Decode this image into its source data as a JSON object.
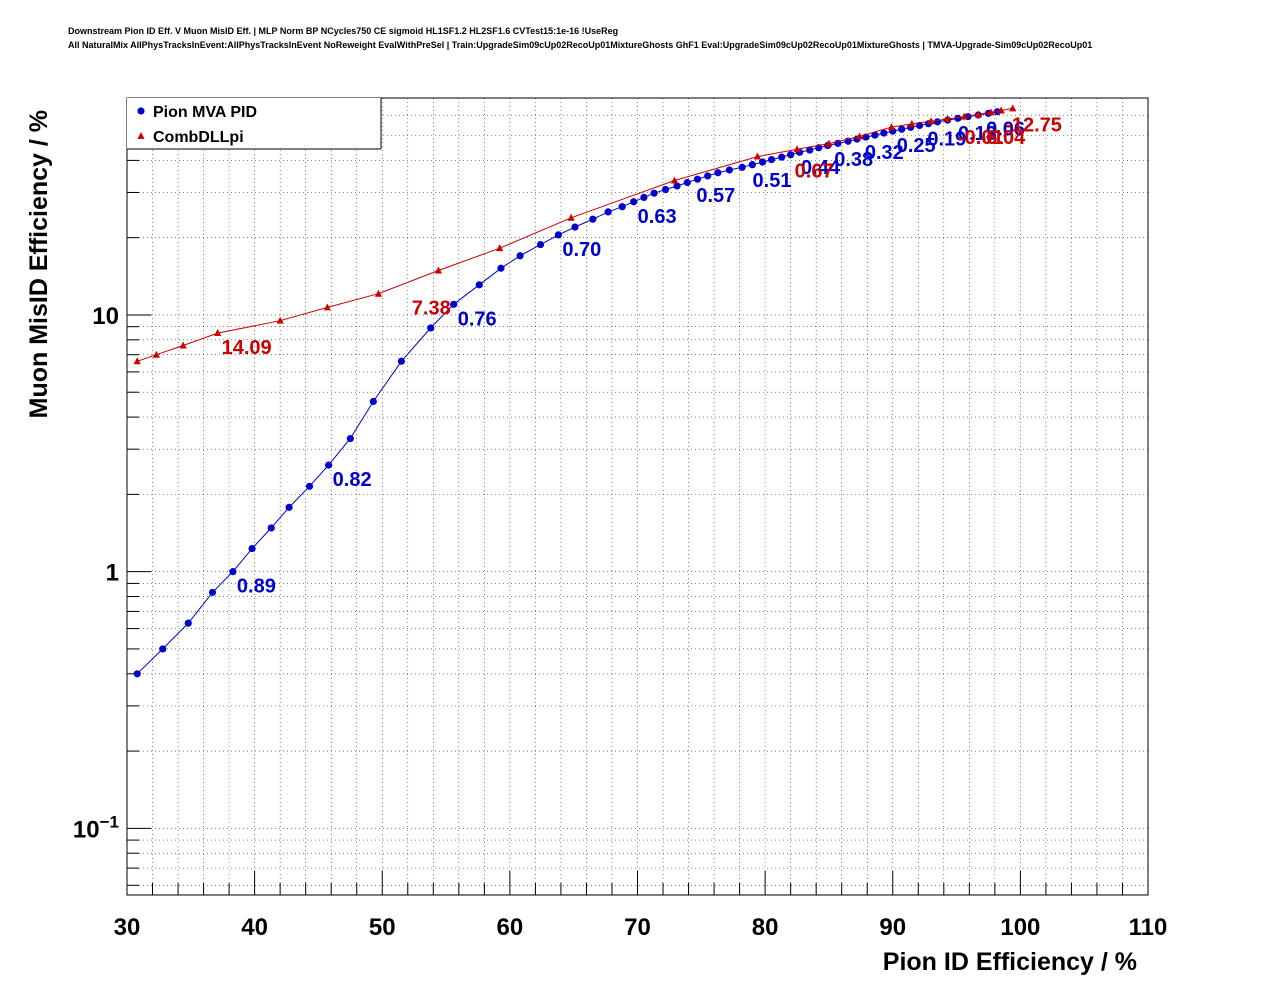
{
  "header": {
    "line1": "Downstream Pion ID Eff. V Muon MisID Eff. | MLP Norm BP NCycles750 CE sigmoid HL1SF1.2 HL2SF1.6 CVTest15:1e-16 !UseReg",
    "line2": "All NaturalMix AllPhysTracksInEvent:AllPhysTracksInEvent NoReweight EvalWithPreSel | Train:UpgradeSim09cUp02RecoUp01MixtureGhosts GhF1 Eval:UpgradeSim09cUp02RecoUp01MixtureGhosts | TMVA-Upgrade-Sim09cUp02RecoUp01"
  },
  "chart_data": {
    "type": "line",
    "xlabel": "Pion ID Efficiency / %",
    "ylabel": "Muon MisID Efficiency / %",
    "xlim": [
      30,
      110
    ],
    "ylim": [
      0.055,
      70
    ],
    "yscale": "log",
    "grid": true,
    "legend_position": "top-left",
    "x_ticks": [
      30,
      40,
      50,
      60,
      70,
      80,
      90,
      100,
      110
    ],
    "y_tick_labels": [
      {
        "value": 0.1,
        "base": "10",
        "exp": "−1"
      },
      {
        "value": 1,
        "base": "1",
        "exp": ""
      },
      {
        "value": 10,
        "base": "10",
        "exp": ""
      }
    ],
    "series": [
      {
        "name": "Pion MVA PID",
        "color": "#0000cc",
        "marker": "circle",
        "x": [
          30.8,
          32.8,
          34.8,
          36.7,
          38.3,
          39.8,
          41.3,
          42.7,
          44.3,
          45.8,
          47.5,
          49.3,
          51.5,
          53.8,
          55.6,
          57.6,
          59.3,
          60.8,
          62.4,
          63.8,
          65.1,
          66.5,
          67.7,
          68.8,
          69.7,
          70.5,
          71.3,
          72.2,
          73.1,
          73.9,
          74.7,
          75.5,
          76.3,
          77.2,
          78.2,
          79.0,
          79.8,
          80.5,
          81.3,
          82.0,
          82.7,
          83.5,
          84.2,
          84.9,
          85.7,
          86.5,
          87.2,
          87.9,
          88.6,
          89.3,
          90.0,
          90.7,
          91.4,
          92.1,
          92.8,
          93.5,
          94.3,
          95.1,
          95.9,
          96.7,
          97.5,
          98.2
        ],
        "y": [
          0.4,
          0.5,
          0.63,
          0.83,
          1.0,
          1.23,
          1.48,
          1.78,
          2.15,
          2.6,
          3.3,
          4.6,
          6.6,
          8.9,
          11.0,
          13.1,
          15.2,
          17.0,
          18.8,
          20.5,
          22.0,
          23.6,
          25.2,
          26.4,
          27.6,
          28.7,
          29.8,
          30.8,
          31.8,
          32.8,
          33.8,
          34.8,
          35.8,
          36.7,
          37.6,
          38.5,
          39.4,
          40.3,
          41.2,
          42.1,
          43.0,
          43.9,
          44.8,
          45.7,
          46.6,
          47.5,
          48.4,
          49.3,
          50.2,
          51.1,
          52.0,
          52.9,
          53.8,
          54.7,
          55.6,
          56.5,
          57.4,
          58.3,
          59.2,
          60.1,
          61.0,
          61.9
        ],
        "labels": [
          {
            "x": 38.3,
            "y": 1.0,
            "text": "0.89"
          },
          {
            "x": 45.8,
            "y": 2.6,
            "text": "0.82"
          },
          {
            "x": 55.6,
            "y": 11.0,
            "text": "0.76"
          },
          {
            "x": 63.8,
            "y": 20.5,
            "text": "0.70"
          },
          {
            "x": 69.7,
            "y": 27.6,
            "text": "0.63"
          },
          {
            "x": 74.3,
            "y": 33.3,
            "text": "0.57"
          },
          {
            "x": 78.7,
            "y": 38.0,
            "text": "0.51"
          },
          {
            "x": 82.5,
            "y": 42.8,
            "text": "0.44"
          },
          {
            "x": 85.1,
            "y": 45.9,
            "text": "0.38"
          },
          {
            "x": 87.5,
            "y": 48.8,
            "text": "0.32"
          },
          {
            "x": 90.0,
            "y": 52.0,
            "text": "0.25"
          },
          {
            "x": 92.4,
            "y": 55.1,
            "text": "0.19"
          },
          {
            "x": 94.8,
            "y": 58.0,
            "text": "0.13"
          },
          {
            "x": 97.0,
            "y": 60.4,
            "text": "0.06"
          }
        ]
      },
      {
        "name": "CombDLLpi",
        "color": "#cc0000",
        "marker": "triangle",
        "x": [
          30.8,
          32.3,
          34.4,
          37.1,
          42.0,
          45.7,
          49.7,
          54.4,
          59.2,
          64.8,
          72.9,
          79.4,
          82.5,
          85.0,
          87.4,
          89.9,
          91.5,
          93.0,
          94.3,
          95.6,
          96.7,
          97.7,
          98.5,
          99.4
        ],
        "y": [
          6.6,
          7.0,
          7.6,
          8.5,
          9.5,
          10.7,
          12.1,
          14.9,
          18.2,
          23.9,
          33.4,
          41.4,
          44.2,
          46.5,
          49.6,
          53.9,
          55.5,
          56.8,
          58.0,
          59.2,
          60.4,
          61.5,
          62.6,
          63.8
        ],
        "labels": [
          {
            "x": 37.1,
            "y": 8.5,
            "text": "14.09"
          },
          {
            "x": 52.0,
            "y": 12.1,
            "text": "7.38"
          },
          {
            "x": 82.0,
            "y": 41.4,
            "text": "0.67"
          },
          {
            "x": 94.8,
            "y": 56.0,
            "text": "-0.01"
          },
          {
            "x": 96.5,
            "y": 56.0,
            "text": "-6.04"
          },
          {
            "x": 98.5,
            "y": 62.6,
            "text": "-12.75"
          }
        ]
      }
    ]
  }
}
